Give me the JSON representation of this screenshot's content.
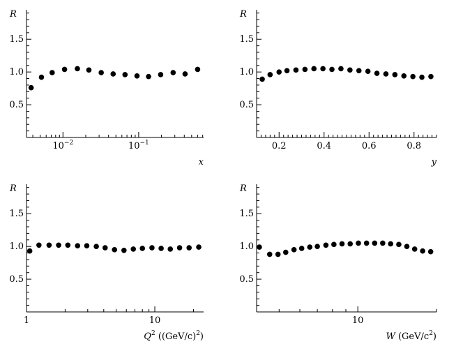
{
  "chart_data": [
    {
      "type": "scatter",
      "ylabel": "R",
      "xlabel_main": "x",
      "xlabel_sup": "",
      "xlabel_rest": "",
      "xscale": "log",
      "xlim": [
        0.0033,
        0.72
      ],
      "ylim": [
        0.0,
        1.95
      ],
      "ytick_labels": [
        "0.5",
        "1.0",
        "1.5"
      ],
      "ytick_values": [
        0.5,
        1.0,
        1.5
      ],
      "xtick_labels": [
        {
          "base": "10",
          "exp": "−2",
          "value": 0.01
        },
        {
          "base": "10",
          "exp": "−1",
          "value": 0.1
        }
      ],
      "x": [
        0.0038,
        0.0052,
        0.0072,
        0.0105,
        0.0155,
        0.022,
        0.032,
        0.046,
        0.066,
        0.095,
        0.135,
        0.195,
        0.285,
        0.41,
        0.6
      ],
      "y": [
        0.76,
        0.92,
        0.99,
        1.04,
        1.05,
        1.03,
        0.99,
        0.97,
        0.96,
        0.94,
        0.93,
        0.96,
        0.99,
        0.97,
        1.04
      ]
    },
    {
      "type": "scatter",
      "ylabel": "R",
      "xlabel_main": "y",
      "xlabel_sup": "",
      "xlabel_rest": "",
      "xscale": "linear",
      "xlim": [
        0.1,
        0.9
      ],
      "ylim": [
        0.0,
        1.95
      ],
      "ytick_labels": [
        "0.5",
        "1.0",
        "1.5"
      ],
      "ytick_values": [
        0.5,
        1.0,
        1.5
      ],
      "xtick_labels": [
        {
          "base": "0.2",
          "exp": "",
          "value": 0.2
        },
        {
          "base": "0.4",
          "exp": "",
          "value": 0.4
        },
        {
          "base": "0.6",
          "exp": "",
          "value": 0.6
        },
        {
          "base": "0.8",
          "exp": "",
          "value": 0.8
        }
      ],
      "x": [
        0.125,
        0.16,
        0.2,
        0.235,
        0.275,
        0.315,
        0.355,
        0.395,
        0.435,
        0.475,
        0.515,
        0.555,
        0.595,
        0.635,
        0.675,
        0.715,
        0.755,
        0.795,
        0.835,
        0.875
      ],
      "y": [
        0.89,
        0.96,
        1.0,
        1.02,
        1.03,
        1.04,
        1.05,
        1.05,
        1.04,
        1.05,
        1.03,
        1.02,
        1.01,
        0.98,
        0.97,
        0.96,
        0.94,
        0.93,
        0.92,
        0.93
      ]
    },
    {
      "type": "scatter",
      "ylabel": "R",
      "xlabel_main": "Q",
      "xlabel_sup": "2",
      "xlabel_rest": " ((GeV/c)",
      "xlabel_rest_sup": "2",
      "xlabel_close": ")",
      "xscale": "log",
      "xlim": [
        1.0,
        24.0
      ],
      "ylim": [
        0.0,
        1.95
      ],
      "ytick_labels": [
        "0.5",
        "1.0",
        "1.5"
      ],
      "ytick_values": [
        0.5,
        1.0,
        1.5
      ],
      "xtick_labels": [
        {
          "base": "1",
          "exp": "",
          "value": 1
        },
        {
          "base": "10",
          "exp": "",
          "value": 10
        }
      ],
      "x": [
        1.06,
        1.25,
        1.5,
        1.78,
        2.1,
        2.5,
        2.95,
        3.5,
        4.1,
        4.85,
        5.75,
        6.8,
        8.0,
        9.5,
        11.2,
        13.2,
        15.6,
        18.5,
        22.0
      ],
      "y": [
        0.93,
        1.02,
        1.02,
        1.02,
        1.02,
        1.01,
        1.01,
        1.0,
        0.98,
        0.95,
        0.94,
        0.96,
        0.97,
        0.98,
        0.97,
        0.96,
        0.98,
        0.98,
        0.99
      ]
    },
    {
      "type": "scatter",
      "ylabel": "R",
      "xlabel_main": "W",
      "xlabel_sup": "",
      "xlabel_rest": " (GeV/c",
      "xlabel_rest_sup": "2",
      "xlabel_close": ")",
      "xscale": "log",
      "xlim": [
        4.1,
        20.0
      ],
      "ylim": [
        0.0,
        1.95
      ],
      "ytick_labels": [
        "0.5",
        "1.0",
        "1.5"
      ],
      "ytick_values": [
        0.5,
        1.0,
        1.5
      ],
      "xtick_labels": [
        {
          "base": "10",
          "exp": "",
          "value": 10
        }
      ],
      "x": [
        4.2,
        4.6,
        4.95,
        5.3,
        5.7,
        6.1,
        6.55,
        7.0,
        7.55,
        8.1,
        8.7,
        9.35,
        10.05,
        10.8,
        11.6,
        12.45,
        13.35,
        14.35,
        15.4,
        16.5,
        17.7,
        19.0
      ],
      "y": [
        0.99,
        0.88,
        0.88,
        0.91,
        0.95,
        0.97,
        0.99,
        1.0,
        1.02,
        1.03,
        1.04,
        1.04,
        1.05,
        1.05,
        1.05,
        1.05,
        1.04,
        1.03,
        1.0,
        0.96,
        0.93,
        0.92
      ]
    }
  ]
}
